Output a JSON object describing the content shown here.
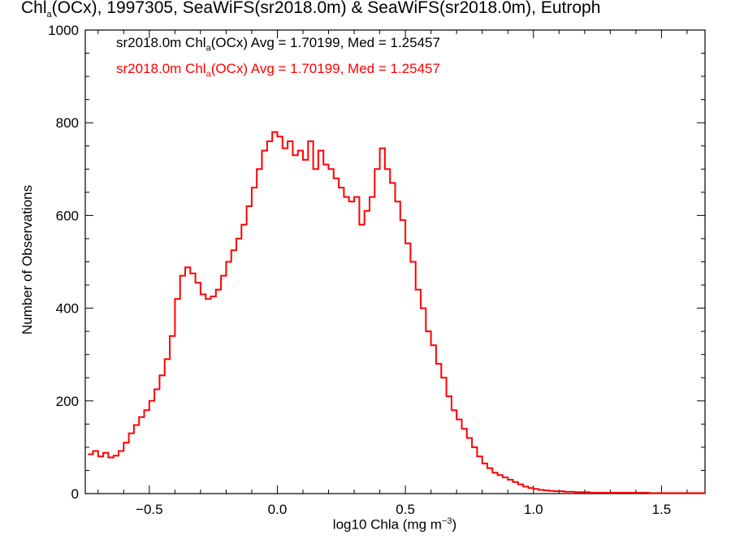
{
  "chart_data": {
    "type": "histogram",
    "title": {
      "pre": "Chl",
      "sub": "a",
      "post": "(OCx), 1997305, SeaWiFS(sr2018.0m) & SeaWiFS(sr2018.0m), Eutroph"
    },
    "xlabel": {
      "pre": "log10 Chla (mg m",
      "sup": "−3",
      "post": ")"
    },
    "ylabel": "Number of Observations",
    "xlim": [
      -0.75,
      1.67
    ],
    "ylim": [
      0,
      1000
    ],
    "x_ticks": [
      -0.5,
      0.0,
      0.5,
      1.0,
      1.5
    ],
    "x_tick_labels": [
      "−0.5",
      "0.0",
      "0.5",
      "1.0",
      "1.5"
    ],
    "y_ticks": [
      0,
      200,
      400,
      600,
      800,
      1000
    ],
    "y_tick_labels": [
      "0",
      "200",
      "400",
      "600",
      "800",
      "1000"
    ],
    "legend": [
      {
        "pre": "sr2018.0m Chl",
        "sub": "a",
        "post": "(OCx) Avg = 1.70199, Med = 1.25457",
        "color": "#000000"
      },
      {
        "pre": "sr2018.0m Chl",
        "sub": "a",
        "post": "(OCx) Avg = 1.70199, Med = 1.25457",
        "color": "#ff0000"
      }
    ],
    "series": [
      {
        "color": "#ff0000",
        "x": [
          -0.74,
          -0.72,
          -0.7,
          -0.68,
          -0.66,
          -0.64,
          -0.62,
          -0.6,
          -0.58,
          -0.56,
          -0.54,
          -0.52,
          -0.5,
          -0.48,
          -0.46,
          -0.44,
          -0.42,
          -0.4,
          -0.38,
          -0.36,
          -0.34,
          -0.32,
          -0.3,
          -0.28,
          -0.26,
          -0.24,
          -0.22,
          -0.2,
          -0.18,
          -0.16,
          -0.14,
          -0.12,
          -0.1,
          -0.08,
          -0.06,
          -0.04,
          -0.02,
          0.0,
          0.02,
          0.04,
          0.06,
          0.08,
          0.1,
          0.12,
          0.14,
          0.16,
          0.18,
          0.2,
          0.22,
          0.24,
          0.26,
          0.28,
          0.3,
          0.32,
          0.34,
          0.36,
          0.38,
          0.4,
          0.42,
          0.44,
          0.46,
          0.48,
          0.5,
          0.52,
          0.54,
          0.56,
          0.58,
          0.6,
          0.62,
          0.64,
          0.66,
          0.68,
          0.7,
          0.72,
          0.74,
          0.76,
          0.78,
          0.8,
          0.82,
          0.84,
          0.86,
          0.88,
          0.9,
          0.92,
          0.94,
          0.96,
          0.98,
          1.0,
          1.02,
          1.04,
          1.06,
          1.08,
          1.1,
          1.12,
          1.14,
          1.16,
          1.18,
          1.2,
          1.22,
          1.24,
          1.26,
          1.28,
          1.3,
          1.35,
          1.4,
          1.45,
          1.5,
          1.55,
          1.6,
          1.65
        ],
        "y": [
          85,
          92,
          80,
          88,
          78,
          82,
          92,
          110,
          130,
          148,
          165,
          180,
          200,
          225,
          255,
          290,
          340,
          420,
          470,
          488,
          475,
          455,
          430,
          420,
          425,
          440,
          470,
          500,
          525,
          550,
          580,
          620,
          660,
          700,
          740,
          760,
          780,
          770,
          745,
          760,
          730,
          740,
          720,
          760,
          700,
          740,
          710,
          700,
          680,
          660,
          640,
          630,
          640,
          580,
          610,
          640,
          700,
          745,
          700,
          670,
          630,
          590,
          540,
          500,
          440,
          400,
          350,
          320,
          280,
          250,
          210,
          180,
          160,
          140,
          120,
          100,
          80,
          65,
          55,
          45,
          40,
          35,
          30,
          25,
          20,
          15,
          12,
          10,
          8,
          7,
          6,
          5,
          5,
          4,
          4,
          3,
          3,
          3,
          2,
          2,
          2,
          2,
          2,
          2,
          2,
          1,
          1,
          1,
          1,
          1
        ]
      }
    ]
  }
}
